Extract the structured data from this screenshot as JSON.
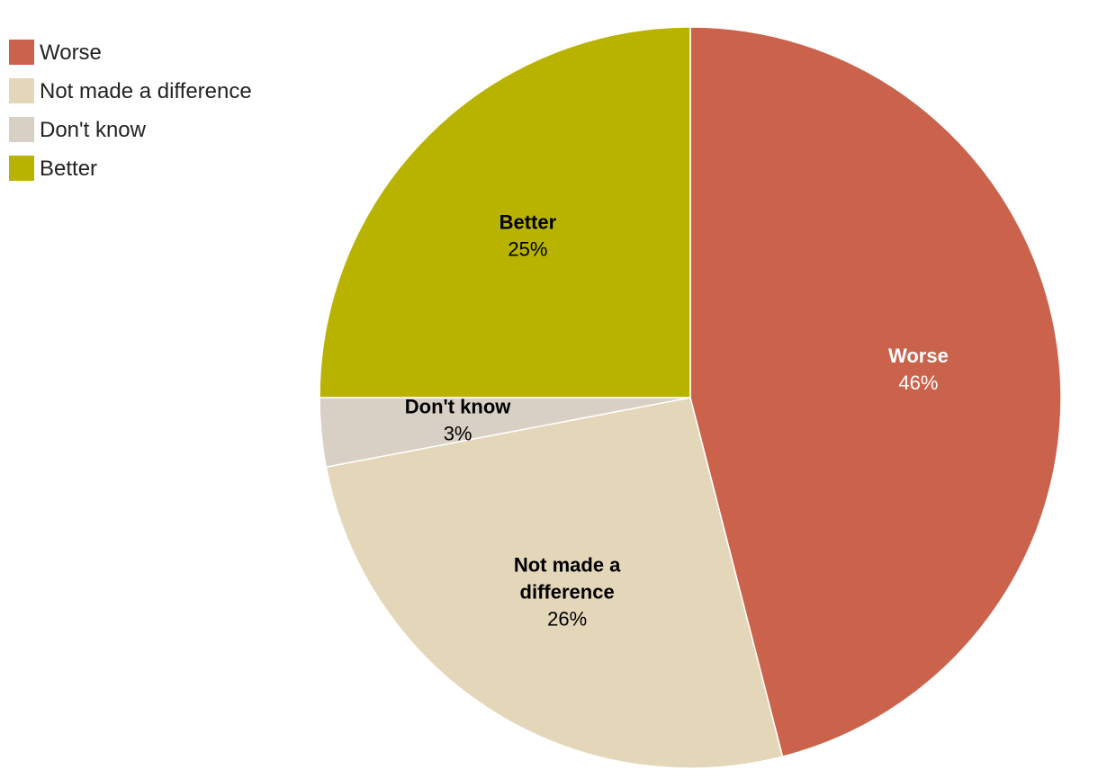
{
  "chart_data": {
    "type": "pie",
    "title": "",
    "legend_position": "top-left",
    "slices": [
      {
        "name": "Worse",
        "value": 46,
        "value_label": "46%",
        "label_lines": [
          "Worse"
        ],
        "color": "#cb624b",
        "text_color": "#ffffff"
      },
      {
        "name": "Not made a difference",
        "value": 26,
        "value_label": "26%",
        "label_lines": [
          "Not made a",
          "difference"
        ],
        "color": "#e4d6b9",
        "text_color": "#000000"
      },
      {
        "name": "Don't know",
        "value": 3,
        "value_label": "3%",
        "label_lines": [
          "Don't know"
        ],
        "color": "#d9d0c5",
        "text_color": "#000000"
      },
      {
        "name": "Better",
        "value": 25,
        "value_label": "25%",
        "label_lines": [
          "Better"
        ],
        "color": "#b8b301",
        "text_color": "#000000"
      }
    ]
  }
}
